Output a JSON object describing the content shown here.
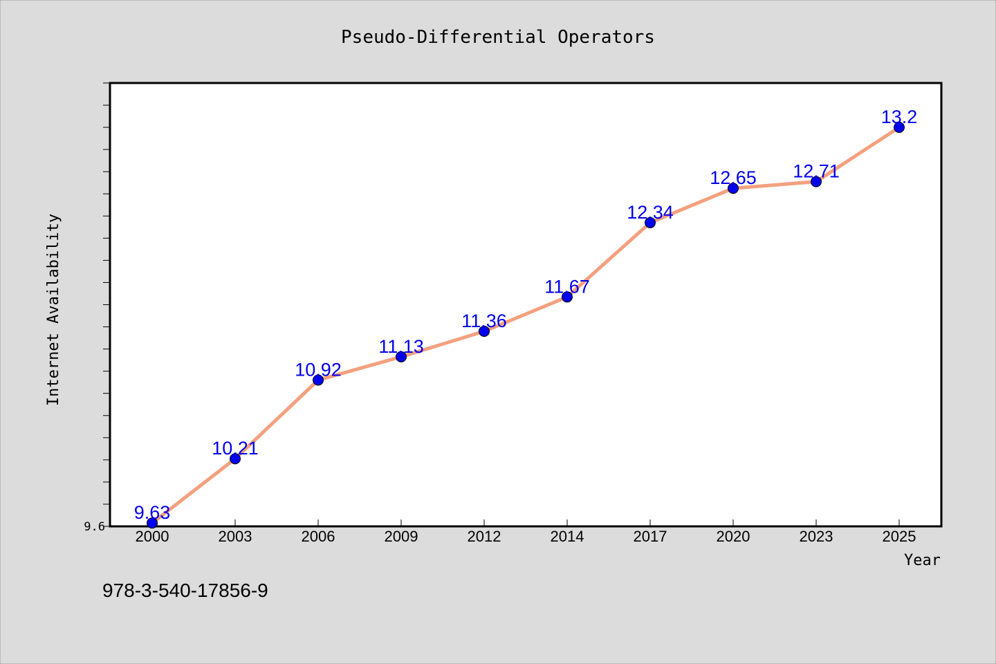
{
  "chart_data": {
    "type": "line",
    "title": "Pseudo-Differential Operators",
    "xlabel": "Year",
    "ylabel": "Internet Availability",
    "categories": [
      "2000",
      "2003",
      "2006",
      "2009",
      "2012",
      "2014",
      "2017",
      "2020",
      "2023",
      "2025"
    ],
    "series": [
      {
        "values": [
          9.63,
          10.21,
          10.92,
          11.13,
          11.36,
          11.67,
          12.34,
          12.65,
          12.71,
          13.2
        ]
      }
    ],
    "data_labels": [
      "9.63",
      "10.21",
      "10.92",
      "11.13",
      "11.36",
      "11.67",
      "12.34",
      "12.65",
      "12.71",
      "13.2"
    ],
    "y_tick_labels": [
      "9.6"
    ],
    "ylim": [
      9.6,
      13.6
    ],
    "grid": false,
    "legend": "none",
    "colors": {
      "background": "#dcdcdc",
      "plot_background": "#ffffff",
      "line": "#f4a07e",
      "marker": "#0000ee",
      "data_label": "#0000ee"
    }
  },
  "footer": {
    "isbn": "978-3-540-17856-9"
  }
}
